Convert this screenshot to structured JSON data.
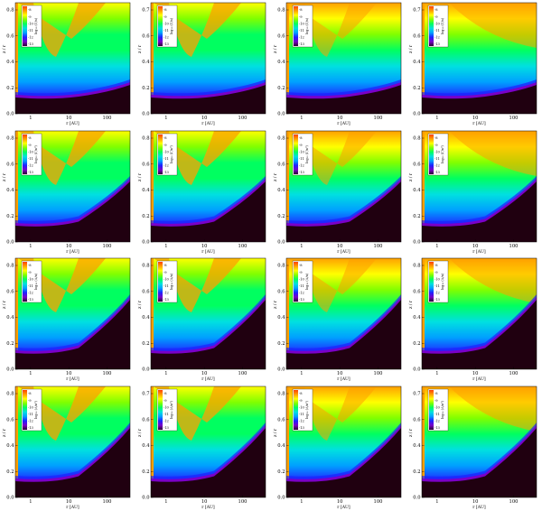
{
  "chart_data": {
    "type": "heatmap",
    "layout": {
      "rows": 4,
      "cols": 4
    },
    "xlabel": "r [AU]",
    "ylabel": "z / r",
    "x_scale": "log",
    "x_ticks": [
      "1",
      "10",
      "100"
    ],
    "x_tick_values": [
      1,
      10,
      100
    ],
    "xlim": [
      0.4,
      400
    ],
    "colorbar_ticks": [
      "-8",
      "-9",
      "-10",
      "-11",
      "-12",
      "-13"
    ],
    "colorbar_range": [
      -13,
      -7.5
    ],
    "colors": {
      "background": "#200010",
      "scale": [
        "#2a0030",
        "#7a00c8",
        "#2020ff",
        "#00a0ff",
        "#00e0e0",
        "#00ff60",
        "#80ff00",
        "#ffff00",
        "#ffa000",
        "#ff4000"
      ]
    },
    "rows": [
      {
        "colorbar_label": "log₁₀ (Γ/n)",
        "panels": [
          {
            "y_ticks": [
              "0.8",
              "0.6",
              "0.4",
              "0.2",
              "0.0"
            ],
            "ylim": [
              0,
              0.9
            ]
          },
          {
            "y_ticks": [
              "0.7",
              "0.6",
              "0.4",
              "0.2",
              "0.0"
            ],
            "ylim": [
              0,
              0.75
            ]
          },
          {
            "y_ticks": [
              "0.8",
              "0.6",
              "0.4",
              "0.2",
              "0.0"
            ],
            "ylim": [
              0,
              0.9
            ]
          },
          {
            "y_ticks": [
              "0.7",
              "0.6",
              "0.4",
              "0.2",
              "0.0"
            ],
            "ylim": [
              0,
              0.75
            ]
          }
        ]
      },
      {
        "colorbar_label": "log₁₀ (Γ/n²)",
        "panels": [
          {
            "y_ticks": [
              "0.8",
              "0.6",
              "0.4",
              "0.2",
              "0.0"
            ],
            "ylim": [
              0,
              0.9
            ]
          },
          {
            "y_ticks": [
              "0.8",
              "0.6",
              "0.4",
              "0.2",
              "0.0"
            ],
            "ylim": [
              0,
              0.9
            ]
          },
          {
            "y_ticks": [
              "0.8",
              "0.6",
              "0.4",
              "0.2",
              "0.0"
            ],
            "ylim": [
              0,
              0.9
            ]
          },
          {
            "y_ticks": [
              "0.8",
              "0.6",
              "0.4",
              "0.2",
              "0.0"
            ],
            "ylim": [
              0,
              0.9
            ]
          }
        ]
      },
      {
        "colorbar_label": "log₁₀ (Λ/n)",
        "panels": [
          {
            "y_ticks": [
              "0.8",
              "0.6",
              "0.4",
              "0.2",
              "0.0"
            ],
            "ylim": [
              0,
              0.9
            ]
          },
          {
            "y_ticks": [
              "0.8",
              "0.6",
              "0.4",
              "0.2",
              "0.0"
            ],
            "ylim": [
              0,
              0.9
            ]
          },
          {
            "y_ticks": [
              "0.8",
              "0.6",
              "0.4",
              "0.2",
              "0.0"
            ],
            "ylim": [
              0,
              0.9
            ]
          },
          {
            "y_ticks": [
              "0.8",
              "0.6",
              "0.4",
              "0.2",
              "0.0"
            ],
            "ylim": [
              0,
              0.9
            ]
          }
        ]
      },
      {
        "colorbar_label": "log₁₀ (Λ/n²)",
        "panels": [
          {
            "y_ticks": [
              "0.8",
              "0.6",
              "0.4",
              "0.2",
              "0.0"
            ],
            "ylim": [
              0,
              0.9
            ]
          },
          {
            "y_ticks": [
              "0.7",
              "0.6",
              "0.4",
              "0.2",
              "0.0"
            ],
            "ylim": [
              0,
              0.75
            ]
          },
          {
            "y_ticks": [
              "0.8",
              "0.6",
              "0.4",
              "0.2",
              "0.0"
            ],
            "ylim": [
              0,
              0.9
            ]
          },
          {
            "y_ticks": [
              "0.7",
              "0.6",
              "0.4",
              "0.2",
              "0.0"
            ],
            "ylim": [
              0,
              0.75
            ]
          }
        ]
      }
    ]
  }
}
